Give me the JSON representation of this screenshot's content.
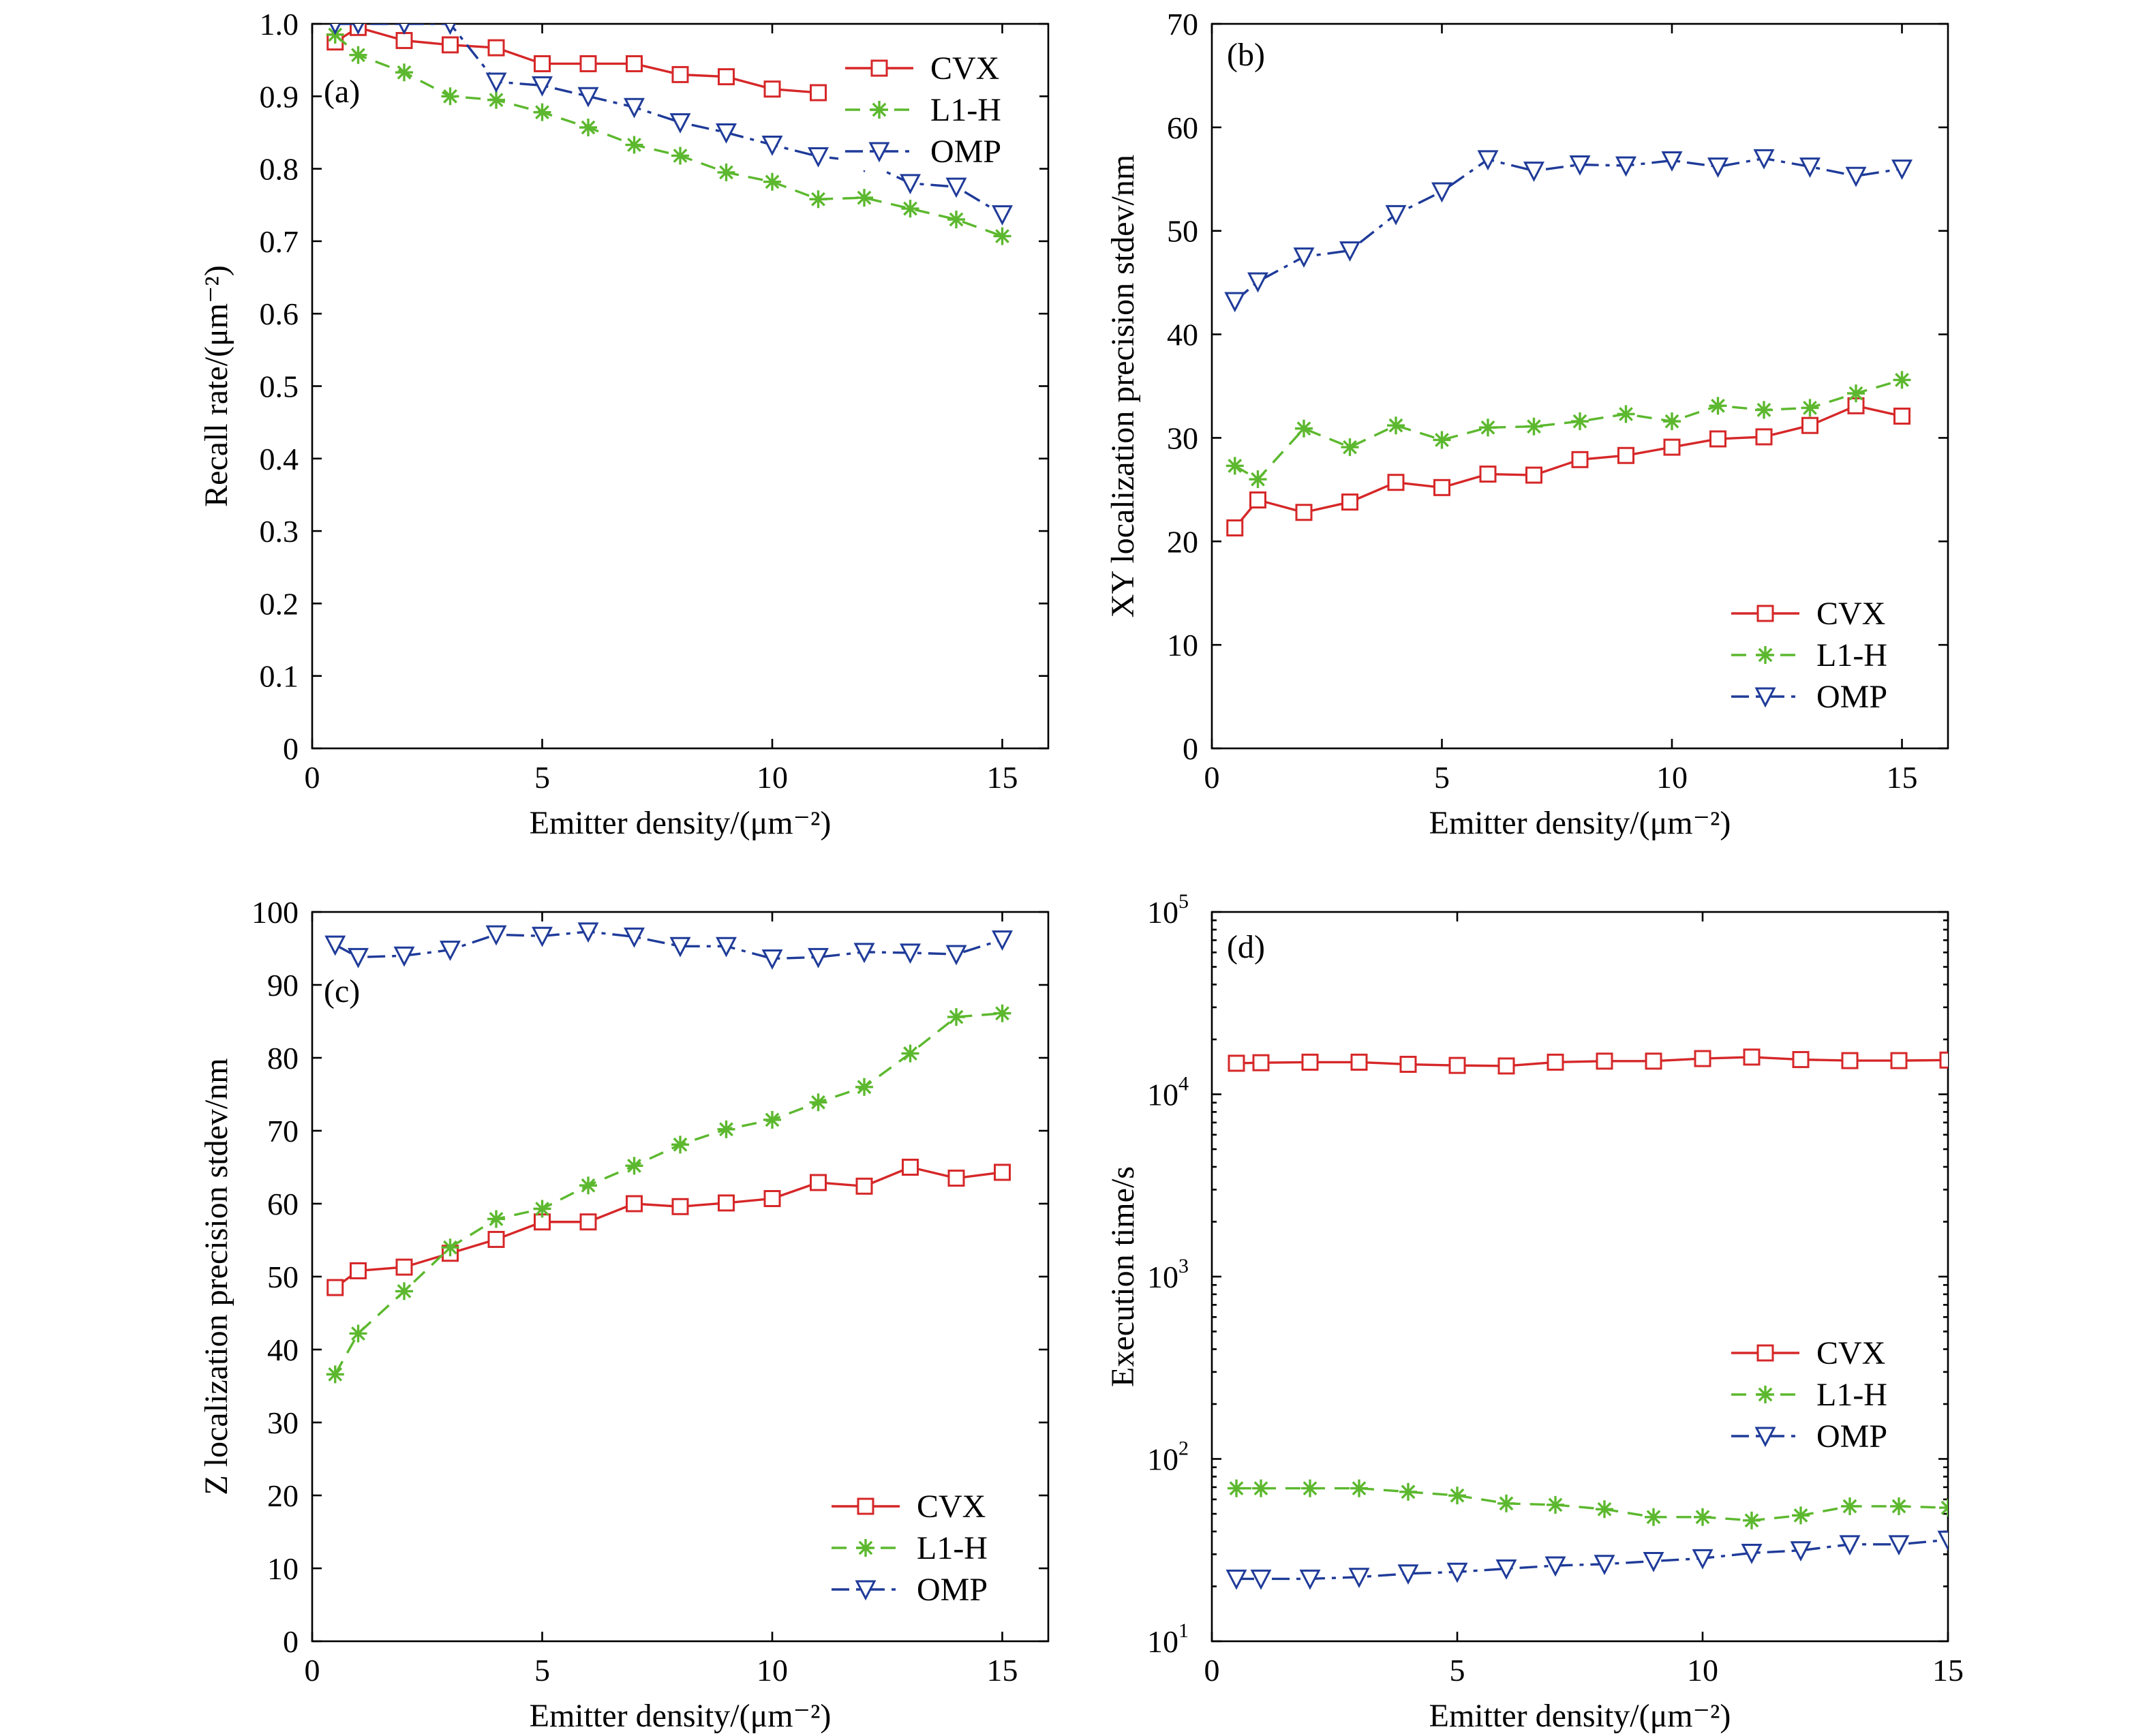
{
  "chart_data": [
    {
      "type": "line",
      "panel_label": "(a)",
      "xlabel": "Emitter density/(μm⁻²)",
      "ylabel": "Recall rate/(μm⁻²)",
      "xlim": [
        0,
        16
      ],
      "ylim": [
        0,
        1.0
      ],
      "xticks": [
        0,
        5,
        10,
        15
      ],
      "yticks": [
        0,
        0.1,
        0.2,
        0.3,
        0.4,
        0.5,
        0.6,
        0.7,
        0.8,
        0.9,
        1.0
      ],
      "ytick_labels": [
        "0",
        "0.1",
        "0.2",
        "0.3",
        "0.4",
        "0.5",
        "0.6",
        "0.7",
        "0.8",
        "0.9",
        "1.0"
      ],
      "legend_position": "top-right",
      "series": [
        {
          "name": "CVX",
          "color": "#d62728",
          "marker": "square",
          "style": "solid",
          "x": [
            0.5,
            1,
            2,
            3,
            4,
            5,
            6,
            7,
            8,
            9,
            10,
            11
          ],
          "y": [
            0.975,
            0.995,
            0.977,
            0.971,
            0.967,
            0.945,
            0.945,
            0.945,
            0.93,
            0.927,
            0.91,
            0.905
          ]
        },
        {
          "name": "L1-H",
          "color": "#5cb82e",
          "marker": "asterisk",
          "style": "dashed",
          "x": [
            0.5,
            1,
            2,
            3,
            4,
            5,
            6,
            7,
            8,
            9,
            10,
            11,
            12,
            13,
            14,
            15
          ],
          "y": [
            0.985,
            0.957,
            0.933,
            0.9,
            0.895,
            0.878,
            0.857,
            0.833,
            0.818,
            0.795,
            0.782,
            0.758,
            0.76,
            0.745,
            0.73,
            0.707
          ]
        },
        {
          "name": "OMP",
          "color": "#1f3b99",
          "marker": "triangle-down",
          "style": "dashdot",
          "x": [
            0.5,
            1,
            2,
            3,
            4,
            5,
            6,
            7,
            8,
            9,
            10,
            11,
            12,
            13,
            14,
            15
          ],
          "y": [
            1.0,
            1.0,
            1.0,
            1.0,
            0.92,
            0.915,
            0.9,
            0.885,
            0.864,
            0.85,
            0.833,
            0.817,
            0.81,
            0.78,
            0.775,
            0.737
          ]
        }
      ]
    },
    {
      "type": "line",
      "panel_label": "(b)",
      "xlabel": "Emitter density/(μm⁻²)",
      "ylabel": "XY localization precision stdev/nm",
      "xlim": [
        0,
        16
      ],
      "ylim": [
        0,
        70
      ],
      "xticks": [
        0,
        5,
        10,
        15
      ],
      "yticks": [
        0,
        10,
        20,
        30,
        40,
        50,
        60,
        70
      ],
      "ytick_labels": [
        "0",
        "10",
        "20",
        "30",
        "40",
        "50",
        "60",
        "70"
      ],
      "legend_position": "bottom-right",
      "series": [
        {
          "name": "CVX",
          "color": "#d62728",
          "marker": "square",
          "style": "solid",
          "x": [
            0.5,
            1,
            2,
            3,
            4,
            5,
            6,
            7,
            8,
            9,
            10,
            11,
            12,
            13,
            14,
            15
          ],
          "y": [
            21.3,
            24.0,
            22.8,
            23.8,
            25.7,
            25.2,
            26.5,
            26.4,
            27.9,
            28.3,
            29.1,
            29.9,
            30.1,
            31.2,
            33.1,
            32.1
          ]
        },
        {
          "name": "L1-H",
          "color": "#5cb82e",
          "marker": "asterisk",
          "style": "dashed",
          "x": [
            0.5,
            1,
            2,
            3,
            4,
            5,
            6,
            7,
            8,
            9,
            10,
            11,
            12,
            13,
            14,
            15
          ],
          "y": [
            27.3,
            26.0,
            30.9,
            29.1,
            31.2,
            29.8,
            31.0,
            31.1,
            31.6,
            32.3,
            31.6,
            33.1,
            32.7,
            32.9,
            34.3,
            35.6
          ]
        },
        {
          "name": "OMP",
          "color": "#1f3b99",
          "marker": "triangle-down",
          "style": "dashdot",
          "x": [
            0.5,
            1,
            2,
            3,
            4,
            5,
            6,
            7,
            8,
            9,
            10,
            11,
            12,
            13,
            14,
            15
          ],
          "y": [
            43.2,
            45.1,
            47.5,
            48.1,
            51.6,
            53.8,
            56.9,
            55.8,
            56.4,
            56.3,
            56.8,
            56.2,
            57.0,
            56.2,
            55.3,
            56.0
          ]
        }
      ]
    },
    {
      "type": "line",
      "panel_label": "(c)",
      "xlabel": "Emitter density/(μm⁻²)",
      "ylabel": "Z localization precision stdev/nm",
      "xlim": [
        0,
        16
      ],
      "ylim": [
        0,
        100
      ],
      "xticks": [
        0,
        5,
        10,
        15
      ],
      "yticks": [
        0,
        10,
        20,
        30,
        40,
        50,
        60,
        70,
        80,
        90,
        100
      ],
      "ytick_labels": [
        "0",
        "10",
        "20",
        "30",
        "40",
        "50",
        "60",
        "70",
        "80",
        "90",
        "100"
      ],
      "legend_position": "bottom-right",
      "series": [
        {
          "name": "CVX",
          "color": "#d62728",
          "marker": "square",
          "style": "solid",
          "x": [
            0.5,
            1,
            2,
            3,
            4,
            5,
            6,
            7,
            8,
            9,
            10,
            11,
            12,
            13,
            14,
            15
          ],
          "y": [
            48.5,
            50.8,
            51.3,
            53.2,
            55.1,
            57.5,
            57.5,
            60.0,
            59.6,
            60.1,
            60.7,
            62.9,
            62.4,
            65.0,
            63.5,
            64.3
          ]
        },
        {
          "name": "L1-H",
          "color": "#5cb82e",
          "marker": "asterisk",
          "style": "dashed",
          "x": [
            0.5,
            1,
            2,
            3,
            4,
            5,
            6,
            7,
            8,
            9,
            10,
            11,
            12,
            13,
            14,
            15
          ],
          "y": [
            36.6,
            42.2,
            48.0,
            54.0,
            57.9,
            59.3,
            62.5,
            65.2,
            68.1,
            70.2,
            71.5,
            73.9,
            76.0,
            80.6,
            85.6,
            86.1
          ]
        },
        {
          "name": "OMP",
          "color": "#1f3b99",
          "marker": "triangle-down",
          "style": "dashdot",
          "x": [
            0.5,
            1,
            2,
            3,
            4,
            5,
            6,
            7,
            8,
            9,
            10,
            11,
            12,
            13,
            14,
            15
          ],
          "y": [
            95.5,
            93.8,
            94.0,
            94.8,
            96.9,
            96.7,
            97.3,
            96.6,
            95.3,
            95.3,
            93.6,
            93.8,
            94.5,
            94.4,
            94.2,
            96.2
          ]
        }
      ]
    },
    {
      "type": "line",
      "panel_label": "(d)",
      "xlabel": "Emitter density/(μm⁻²)",
      "ylabel": "Execution time/s",
      "xscale": "linear",
      "yscale": "log",
      "xlim": [
        0,
        15
      ],
      "ylim": [
        10,
        100000
      ],
      "xticks": [
        0,
        5,
        10,
        15
      ],
      "yticks": [
        10,
        100,
        1000,
        10000,
        100000
      ],
      "ytick_labels": [
        [
          "10",
          "1"
        ],
        [
          "10",
          "2"
        ],
        [
          "10",
          "3"
        ],
        [
          "10",
          "4"
        ],
        [
          "10",
          "5"
        ]
      ],
      "legend_position": "center-right",
      "series": [
        {
          "name": "CVX",
          "color": "#d62728",
          "marker": "square",
          "style": "solid",
          "x": [
            0.5,
            1,
            2,
            3,
            4,
            5,
            6,
            7,
            8,
            9,
            10,
            11,
            12,
            13,
            14,
            15
          ],
          "y": [
            14800,
            14900,
            15000,
            15000,
            14600,
            14400,
            14300,
            15000,
            15200,
            15200,
            15700,
            16000,
            15500,
            15300,
            15300,
            15400
          ]
        },
        {
          "name": "L1-H",
          "color": "#5cb82e",
          "marker": "asterisk",
          "style": "dashed",
          "x": [
            0.5,
            1,
            2,
            3,
            4,
            5,
            6,
            7,
            8,
            9,
            10,
            11,
            12,
            13,
            14,
            15
          ],
          "y": [
            69,
            69,
            69,
            69,
            66,
            63,
            57,
            56,
            53,
            48,
            48,
            46,
            49,
            55,
            55,
            54
          ]
        },
        {
          "name": "OMP",
          "color": "#1f3b99",
          "marker": "triangle-down",
          "style": "dashdot",
          "x": [
            0.5,
            1,
            2,
            3,
            4,
            5,
            6,
            7,
            8,
            9,
            10,
            11,
            12,
            13,
            14,
            15
          ],
          "y": [
            22,
            22,
            22,
            22.5,
            23.5,
            24,
            25,
            26,
            26.5,
            27.5,
            28.5,
            30.5,
            31.5,
            34,
            34,
            36
          ]
        }
      ]
    }
  ]
}
